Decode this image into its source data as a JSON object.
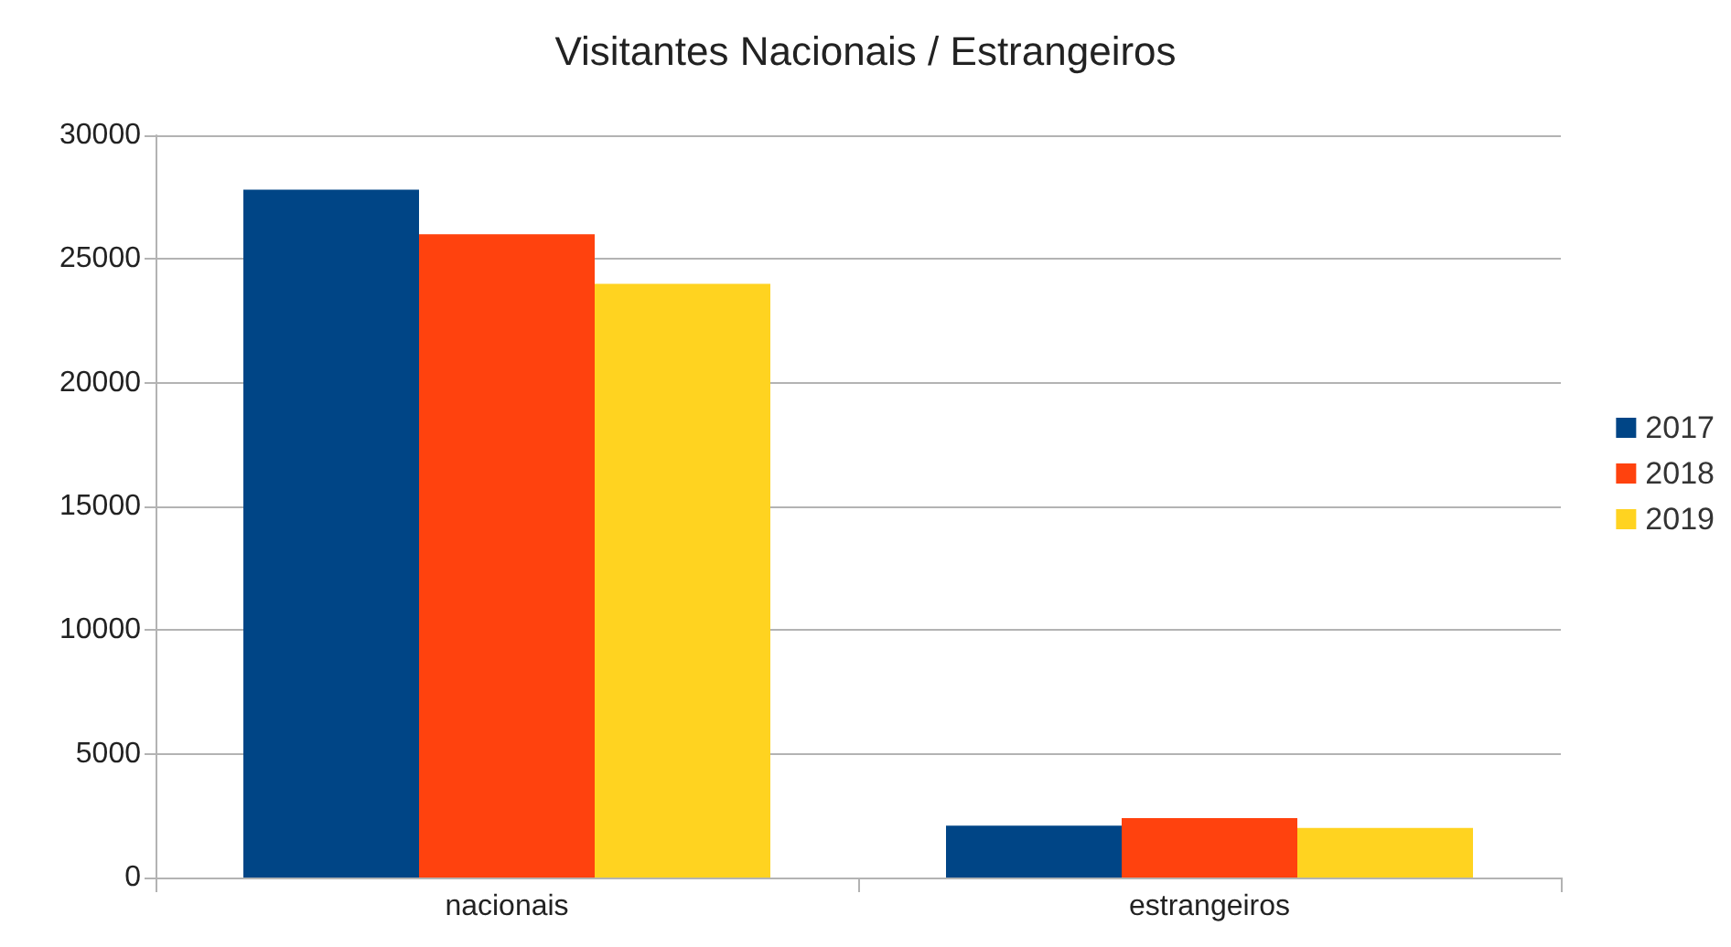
{
  "chart_data": {
    "type": "bar",
    "title": "Visitantes Nacionais / Estrangeiros",
    "categories": [
      "nacionais",
      "estrangeiros"
    ],
    "series": [
      {
        "name": "2017",
        "color": "#004586",
        "values": [
          27800,
          2100
        ]
      },
      {
        "name": "2018",
        "color": "#ff420e",
        "values": [
          26000,
          2400
        ]
      },
      {
        "name": "2019",
        "color": "#ffd320",
        "values": [
          24000,
          2000
        ]
      }
    ],
    "ylim": [
      0,
      30000
    ],
    "yticks": [
      0,
      5000,
      10000,
      15000,
      20000,
      25000,
      30000
    ],
    "grid": "y",
    "legend": "right"
  }
}
